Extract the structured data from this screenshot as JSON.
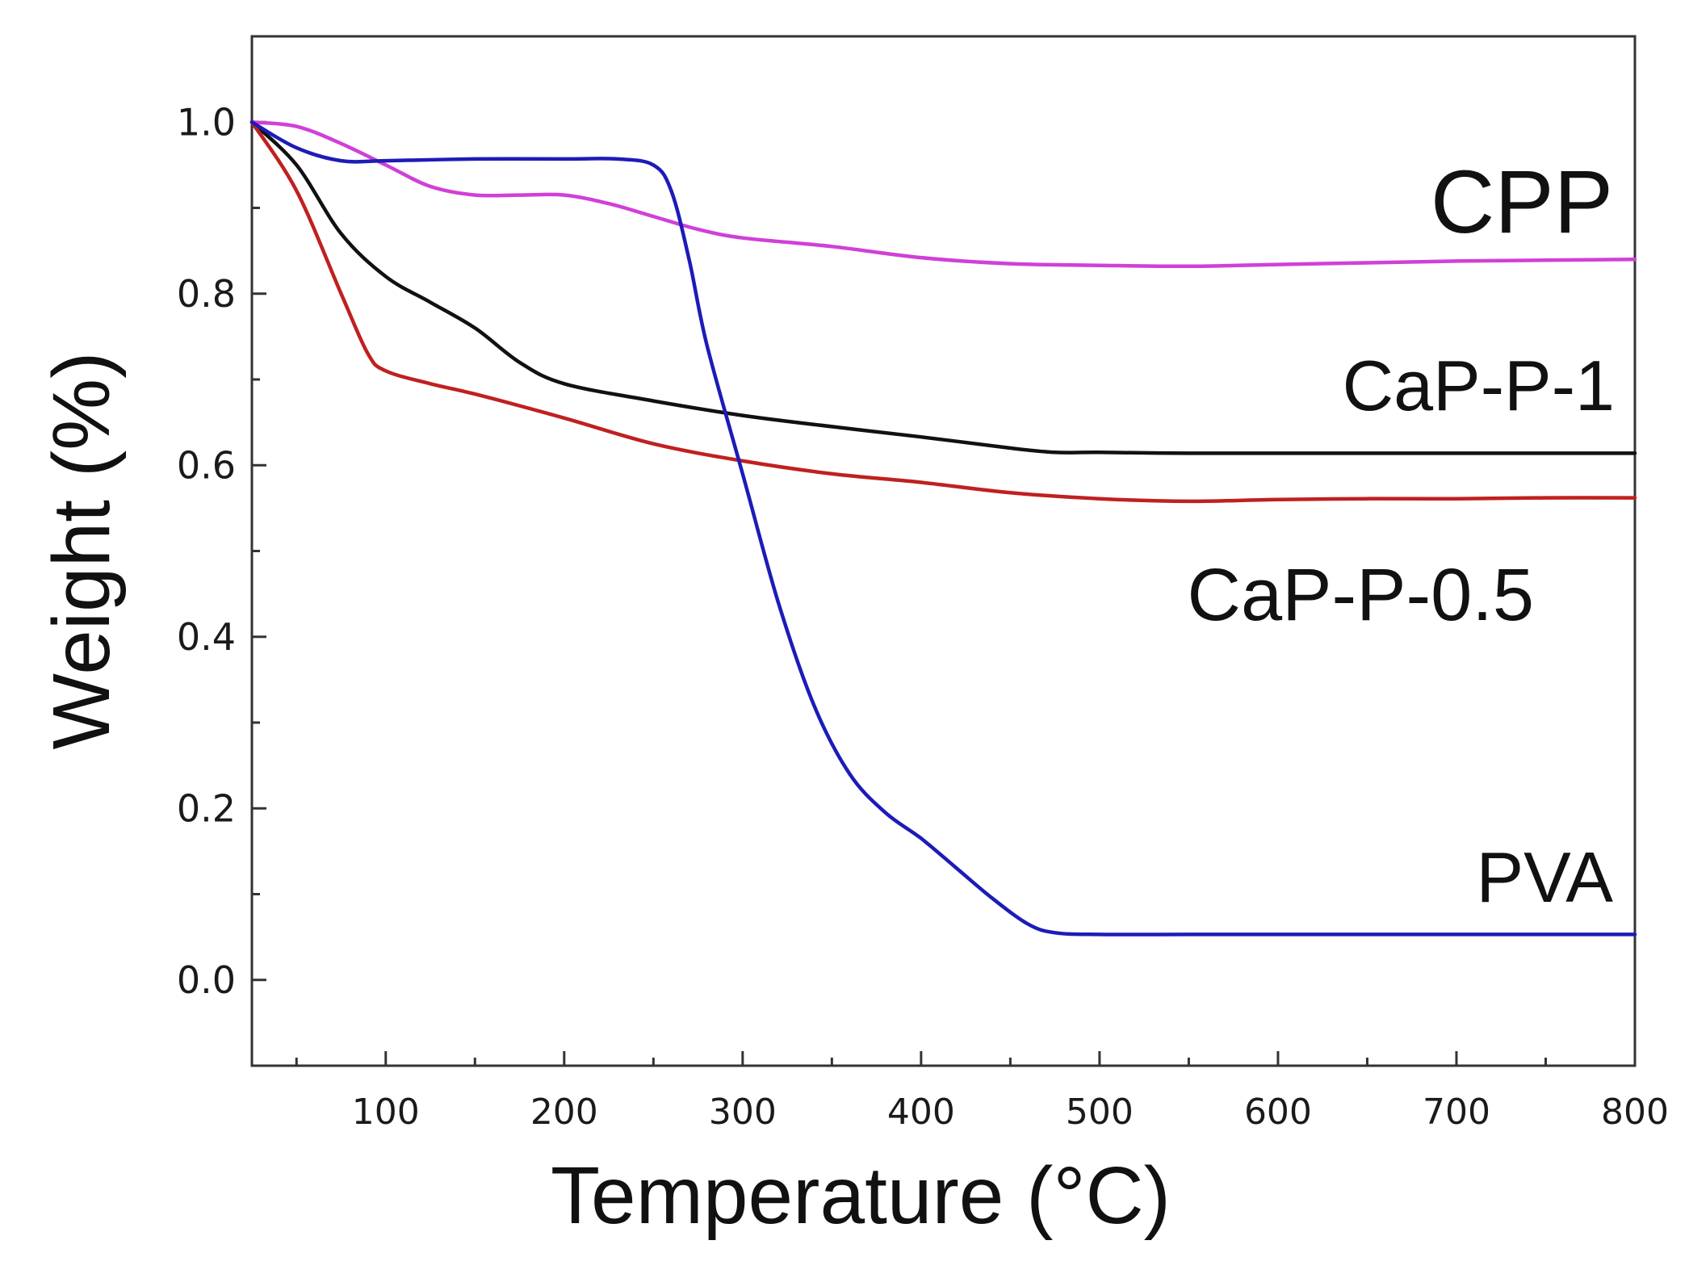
{
  "chart_data": {
    "type": "line",
    "title": "",
    "xlabel": "Temperature (°C)",
    "ylabel": "Weight (%)",
    "xlim": [
      25,
      800
    ],
    "ylim": [
      -0.1,
      1.1
    ],
    "x_ticks": [
      100,
      200,
      300,
      400,
      500,
      600,
      700,
      800
    ],
    "y_ticks": [
      0.0,
      0.2,
      0.4,
      0.6,
      0.8,
      1.0
    ],
    "y_tick_labels": [
      "0.0",
      "0.2",
      "0.4",
      "0.6",
      "0.8",
      "1.0"
    ],
    "grid": false,
    "series": [
      {
        "name": "CPP",
        "color": "#d040d8",
        "x": [
          25,
          50,
          75,
          100,
          125,
          150,
          175,
          200,
          225,
          250,
          275,
          300,
          350,
          400,
          450,
          500,
          550,
          600,
          650,
          700,
          750,
          800
        ],
        "y": [
          1.0,
          0.995,
          0.975,
          0.95,
          0.925,
          0.915,
          0.915,
          0.915,
          0.905,
          0.89,
          0.875,
          0.865,
          0.855,
          0.842,
          0.835,
          0.833,
          0.832,
          0.834,
          0.836,
          0.838,
          0.839,
          0.84
        ]
      },
      {
        "name": "CaP-P-1",
        "color": "#111111",
        "x": [
          25,
          50,
          75,
          100,
          125,
          150,
          175,
          200,
          250,
          300,
          350,
          400,
          450,
          475,
          500,
          550,
          600,
          650,
          700,
          750,
          800
        ],
        "y": [
          1.0,
          0.95,
          0.87,
          0.82,
          0.79,
          0.76,
          0.72,
          0.695,
          0.675,
          0.658,
          0.645,
          0.633,
          0.62,
          0.615,
          0.615,
          0.614,
          0.614,
          0.614,
          0.614,
          0.614,
          0.614
        ]
      },
      {
        "name": "CaP-P-0.5",
        "color": "#c02020",
        "x": [
          25,
          50,
          75,
          90,
          100,
          125,
          150,
          200,
          250,
          300,
          350,
          400,
          450,
          500,
          550,
          600,
          650,
          700,
          750,
          800
        ],
        "y": [
          1.0,
          0.92,
          0.8,
          0.73,
          0.71,
          0.695,
          0.683,
          0.655,
          0.625,
          0.605,
          0.59,
          0.58,
          0.568,
          0.561,
          0.558,
          0.56,
          0.561,
          0.561,
          0.562,
          0.562
        ]
      },
      {
        "name": "PVA",
        "color": "#1c1cb8",
        "x": [
          25,
          50,
          75,
          100,
          150,
          200,
          230,
          250,
          260,
          270,
          280,
          300,
          320,
          340,
          360,
          380,
          400,
          420,
          440,
          460,
          475,
          500,
          550,
          600,
          700,
          800
        ],
        "y": [
          1.0,
          0.97,
          0.955,
          0.955,
          0.957,
          0.957,
          0.957,
          0.95,
          0.92,
          0.84,
          0.74,
          0.59,
          0.44,
          0.32,
          0.24,
          0.195,
          0.165,
          0.13,
          0.095,
          0.065,
          0.055,
          0.053,
          0.053,
          0.053,
          0.053,
          0.053
        ]
      }
    ],
    "annotations": [
      {
        "text": "CPP",
        "series": "CPP"
      },
      {
        "text": "CaP-P-1",
        "series": "CaP-P-1"
      },
      {
        "text": "CaP-P-0.5",
        "series": "CaP-P-0.5"
      },
      {
        "text": "PVA",
        "series": "PVA"
      }
    ]
  }
}
